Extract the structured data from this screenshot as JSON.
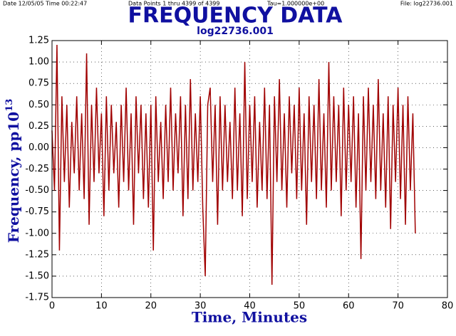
{
  "chart_data": {
    "type": "line",
    "title": "FREQUENCY DATA",
    "subtitle": "log22736.001",
    "annotations": [
      "Date  12/05/05   Time   00:22:47",
      "Data Points 1 thru 4399  of  4399",
      "Tau=1.000000e+00",
      "File: log22736.001"
    ],
    "xlabel": "Time,  Minutes",
    "ylabel": {
      "text": "Frequency,  pp10",
      "superscript": "13"
    },
    "color": "#a00000",
    "grid": true,
    "xlim": [
      0,
      80
    ],
    "xticks": [
      0,
      10,
      20,
      30,
      40,
      50,
      60,
      70,
      80
    ],
    "ylim": [
      -1.75,
      1.25
    ],
    "yticks": [
      1.25,
      {
        "value": 1,
        "label": "1.00"
      },
      0.75,
      {
        "value": 0.5,
        "label": "0.50"
      },
      0.25,
      {
        "value": 0,
        "label": "0.00"
      },
      -0.25,
      {
        "value": -0.5,
        "label": "-0.50"
      },
      -0.75,
      {
        "value": -1,
        "label": "-1.00"
      },
      -1.25,
      {
        "value": -1.5,
        "label": "-1.50"
      },
      -1.75
    ],
    "x": [
      0,
      0.5,
      1,
      1.5,
      2,
      2.5,
      3,
      3.5,
      4,
      4.5,
      5,
      5.5,
      6,
      6.5,
      7,
      7.5,
      8,
      8.5,
      9,
      9.5,
      10,
      10.5,
      11,
      11.5,
      12,
      12.5,
      13,
      13.5,
      14,
      14.5,
      15,
      15.5,
      16,
      16.5,
      17,
      17.5,
      18,
      18.5,
      19,
      19.5,
      20,
      20.5,
      21,
      21.5,
      22,
      22.5,
      23,
      23.5,
      24,
      24.5,
      25,
      25.5,
      26,
      26.5,
      27,
      27.5,
      28,
      28.5,
      29,
      29.5,
      30,
      30.5,
      31,
      31.5,
      32,
      32.5,
      33,
      33.5,
      34,
      34.5,
      35,
      35.5,
      36,
      36.5,
      37,
      37.5,
      38,
      38.5,
      39,
      39.5,
      40,
      40.5,
      41,
      41.5,
      42,
      42.5,
      43,
      43.5,
      44,
      44.5,
      45,
      45.5,
      46,
      46.5,
      47,
      47.5,
      48,
      48.5,
      49,
      49.5,
      50,
      50.5,
      51,
      51.5,
      52,
      52.5,
      53,
      53.5,
      54,
      54.5,
      55,
      55.5,
      56,
      56.5,
      57,
      57.5,
      58,
      58.5,
      59,
      59.5,
      60,
      60.5,
      61,
      61.5,
      62,
      62.5,
      63,
      63.5,
      64,
      64.5,
      65,
      65.5,
      66,
      66.5,
      67,
      67.5,
      68,
      68.5,
      69,
      69.5,
      70,
      70.5,
      71,
      71.5,
      72,
      72.5,
      73,
      73.5
    ],
    "values": [
      0.2,
      -0.5,
      1.2,
      -1.2,
      0.6,
      -0.4,
      0.5,
      -0.7,
      0.3,
      -0.3,
      0.6,
      -0.5,
      0.4,
      -0.6,
      1.1,
      -0.9,
      0.5,
      -0.4,
      0.7,
      -0.3,
      0.4,
      -0.8,
      0.6,
      -0.5,
      0.5,
      -0.3,
      0.3,
      -0.7,
      0.5,
      -0.4,
      0.7,
      -0.5,
      0.4,
      -0.9,
      0.6,
      -0.3,
      0.5,
      -0.6,
      0.4,
      -0.7,
      0.5,
      -1.2,
      0.6,
      -0.4,
      0.3,
      -0.6,
      0.5,
      -0.4,
      0.7,
      -0.5,
      0.4,
      -0.3,
      0.6,
      -0.8,
      0.5,
      -0.6,
      0.8,
      -0.5,
      0.4,
      -0.4,
      0.6,
      -0.7,
      -1.5,
      0.5,
      0.7,
      -0.4,
      0.5,
      -0.9,
      0.6,
      -0.5,
      0.5,
      -0.4,
      0.3,
      -0.6,
      0.7,
      -0.5,
      0.4,
      -0.8,
      1.0,
      -0.6,
      0.5,
      -0.4,
      0.6,
      -0.7,
      0.3,
      -0.5,
      0.7,
      -0.6,
      0.5,
      -1.6,
      0.6,
      -0.4,
      0.8,
      -0.5,
      0.4,
      -0.7,
      0.6,
      -0.3,
      0.5,
      -0.6,
      0.7,
      -0.5,
      0.4,
      -0.9,
      0.6,
      -0.4,
      0.5,
      -0.6,
      0.8,
      -0.5,
      0.4,
      -0.7,
      1.0,
      -0.5,
      0.6,
      -0.4,
      0.5,
      -0.8,
      0.7,
      -0.5,
      0.5,
      -0.4,
      0.6,
      -0.7,
      0.4,
      -1.3,
      0.6,
      -0.5,
      0.7,
      -0.4,
      0.5,
      -0.6,
      0.8,
      -0.5,
      0.4,
      -0.7,
      0.6,
      -0.95,
      0.5,
      -0.4,
      0.7,
      -0.6,
      0.5,
      -0.9,
      0.6,
      -0.5,
      0.4,
      -1.0
    ]
  }
}
